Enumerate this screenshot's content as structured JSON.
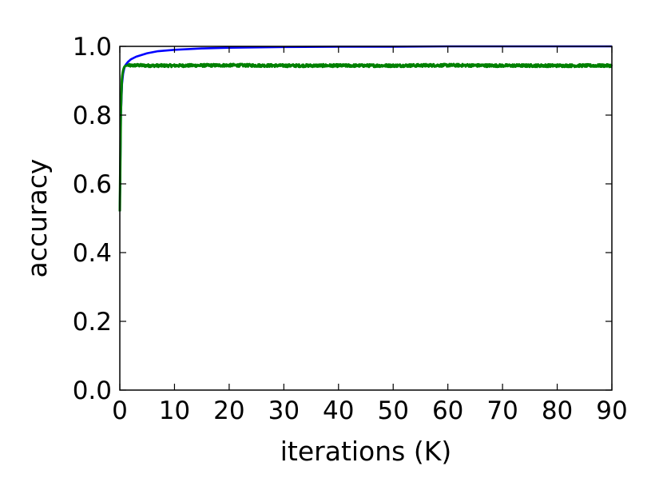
{
  "chart_data": {
    "type": "line",
    "title": "",
    "xlabel": "iterations (K)",
    "ylabel": "accuracy",
    "xlim": [
      0,
      90
    ],
    "ylim": [
      0.0,
      1.0
    ],
    "xticks": [
      0,
      10,
      20,
      30,
      40,
      50,
      60,
      70,
      80,
      90
    ],
    "yticks": [
      0.0,
      0.2,
      0.4,
      0.6,
      0.8,
      1.0
    ],
    "xtick_labels": [
      "0",
      "10",
      "20",
      "30",
      "40",
      "50",
      "60",
      "70",
      "80",
      "90"
    ],
    "ytick_labels": [
      "0.0",
      "0.2",
      "0.4",
      "0.6",
      "0.8",
      "1.0"
    ],
    "grid": false,
    "legend": "none",
    "series": [
      {
        "color": "#0000ff",
        "x": [
          0,
          0.2,
          0.4,
          0.6,
          0.8,
          1.0,
          1.5,
          2,
          3,
          4,
          5,
          7,
          10,
          15,
          20,
          30,
          40,
          50,
          60,
          70,
          80,
          90
        ],
        "y": [
          0.52,
          0.8,
          0.89,
          0.92,
          0.935,
          0.945,
          0.955,
          0.962,
          0.97,
          0.975,
          0.98,
          0.986,
          0.99,
          0.994,
          0.996,
          0.998,
          0.999,
          0.999,
          1.0,
          1.0,
          1.0,
          1.0
        ]
      },
      {
        "color": "#008000",
        "x": [
          0,
          0.2,
          0.4,
          0.6,
          0.8,
          1.0,
          1.5,
          2,
          3,
          5,
          10,
          20,
          30,
          40,
          50,
          60,
          70,
          80,
          90
        ],
        "y": [
          0.52,
          0.82,
          0.91,
          0.93,
          0.94,
          0.943,
          0.945,
          0.944,
          0.945,
          0.944,
          0.944,
          0.945,
          0.944,
          0.944,
          0.944,
          0.945,
          0.944,
          0.944,
          0.944
        ],
        "noise": 0.004
      }
    ]
  }
}
